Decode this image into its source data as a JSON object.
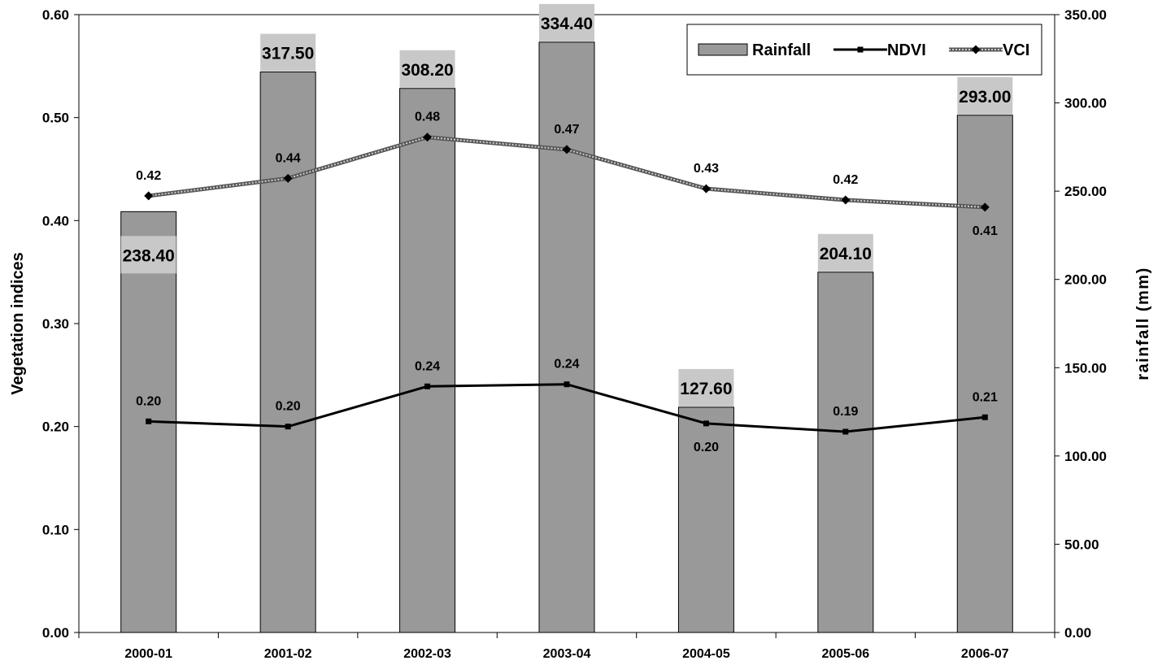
{
  "chart_data": {
    "type": "bar",
    "categories": [
      "2000-01",
      "2001-02",
      "2002-03",
      "2003-04",
      "2004-05",
      "2005-06",
      "2006-07"
    ],
    "series": [
      {
        "name": "Rainfall",
        "type": "bar",
        "axis": "right",
        "values": [
          238.4,
          317.5,
          308.2,
          334.4,
          127.6,
          204.1,
          293.0
        ],
        "labels": [
          "238.40",
          "317.50",
          "308.20",
          "334.40",
          "127.60",
          "204.10",
          "293.00"
        ],
        "color": "#999999"
      },
      {
        "name": "NDVI",
        "type": "line",
        "axis": "left",
        "values": [
          0.205,
          0.2,
          0.239,
          0.241,
          0.203,
          0.195,
          0.209
        ],
        "labels": [
          "0.20",
          "0.20",
          "0.24",
          "0.24",
          "0.20",
          "0.19",
          "0.21"
        ],
        "color": "#000000",
        "marker": "square"
      },
      {
        "name": "VCI",
        "type": "line",
        "axis": "left",
        "values": [
          0.424,
          0.441,
          0.481,
          0.469,
          0.431,
          0.42,
          0.413
        ],
        "labels": [
          "0.42",
          "0.44",
          "0.48",
          "0.47",
          "0.43",
          "0.42",
          "0.41"
        ],
        "color": "#888888",
        "marker": "diamond"
      }
    ],
    "y_left": {
      "label": "Vegetation indices",
      "range": [
        0,
        0.6
      ],
      "ticks": [
        "0.00",
        "0.10",
        "0.20",
        "0.30",
        "0.40",
        "0.50",
        "0.60"
      ]
    },
    "y_right": {
      "label": "rainfall (mm)",
      "range": [
        0,
        350
      ],
      "ticks": [
        "0.00",
        "50.00",
        "100.00",
        "150.00",
        "200.00",
        "250.00",
        "300.00",
        "350.00"
      ]
    },
    "xlabel": "",
    "grid": false,
    "legend": {
      "position": "top-right",
      "entries": [
        "Rainfall",
        "NDVI",
        "VCI"
      ]
    }
  }
}
